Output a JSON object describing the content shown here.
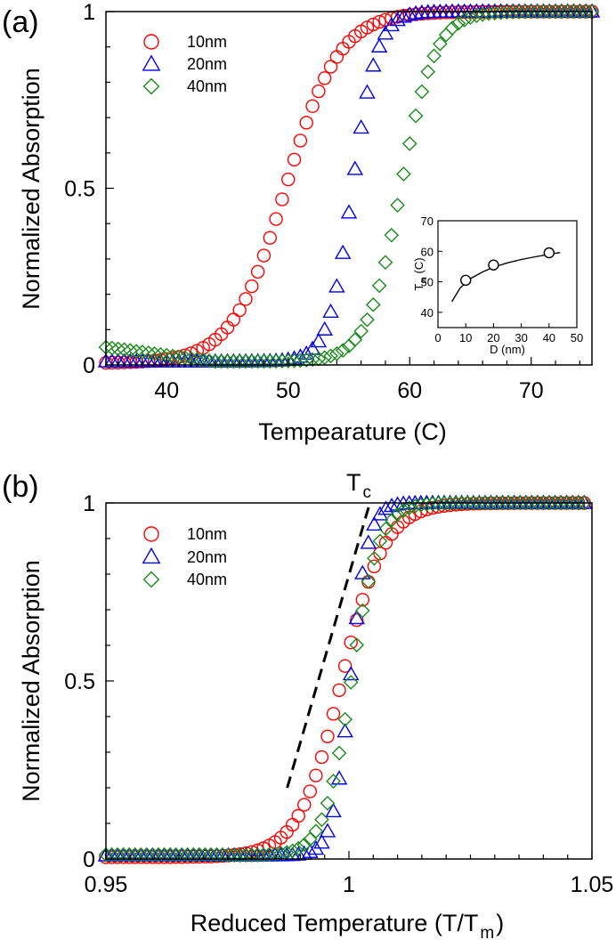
{
  "figure_labels": {
    "a": "(a)",
    "b": "(b)"
  },
  "colors": {
    "s10": "#ff0000",
    "s20": "#0000ee",
    "s40": "#1a8c1a",
    "axis": "#000000"
  },
  "chart_data": [
    {
      "id": "a",
      "type": "scatter",
      "title": "",
      "xlabel": "Tempearature (C)",
      "ylabel": "Normalized Absorption",
      "xlim": [
        35,
        75
      ],
      "ylim": [
        0,
        1
      ],
      "xticks": [
        40,
        50,
        60,
        70
      ],
      "yticks": [
        0,
        0.5,
        1
      ],
      "ytick_labels": [
        "0",
        "0.5",
        "1"
      ],
      "legend": [
        "10nm",
        "20nm",
        "40nm"
      ],
      "legend_position": "top-left",
      "series": [
        {
          "name": "10nm",
          "marker": "circle",
          "color": "#ff0000",
          "midpoint": 49.8,
          "width": 2.2,
          "baseline": 0.005
        },
        {
          "name": "20nm",
          "marker": "triangle",
          "color": "#0000ee",
          "midpoint": 55.3,
          "width": 1.0,
          "baseline": 0.01
        },
        {
          "name": "40nm",
          "marker": "diamond",
          "color": "#1a8c1a",
          "midpoint": 59.3,
          "width": 1.4,
          "baseline": 0.01
        }
      ],
      "inset": {
        "xlabel": "D (nm)",
        "ylabel_main": "T",
        "ylabel_sub": "m",
        "ylabel_unit": " (C)",
        "xlim": [
          0,
          50
        ],
        "ylim": [
          35,
          70
        ],
        "xticks": [
          0,
          10,
          20,
          30,
          40,
          50
        ],
        "yticks": [
          40,
          50,
          60,
          70
        ],
        "points": [
          [
            10,
            50.5
          ],
          [
            20,
            55.5
          ],
          [
            40,
            59.5
          ]
        ],
        "fit_curve": [
          [
            5,
            43.5
          ],
          [
            8,
            48.0
          ],
          [
            12,
            51.2
          ],
          [
            16,
            53.2
          ],
          [
            20,
            54.8
          ],
          [
            25,
            56.2
          ],
          [
            30,
            57.3
          ],
          [
            35,
            58.2
          ],
          [
            40,
            59.0
          ],
          [
            44,
            59.6
          ]
        ]
      }
    },
    {
      "id": "b",
      "type": "scatter",
      "title": "",
      "xlabel_main": "Reduced Temperature (T/T",
      "xlabel_sub": "m",
      "xlabel_end": ")",
      "ylabel": "Normalized Absorption",
      "xlim": [
        0.95,
        1.05
      ],
      "ylim": [
        0,
        1
      ],
      "xticks": [
        0.95,
        1,
        1.05
      ],
      "xtick_labels": [
        "0.95",
        "1",
        "1.05"
      ],
      "yticks": [
        0,
        0.5,
        1
      ],
      "ytick_labels": [
        "0",
        "0.5",
        "1"
      ],
      "legend": [
        "10nm",
        "20nm",
        "40nm"
      ],
      "legend_position": "top-left",
      "annotation_main": "T",
      "annotation_sub": "c",
      "tangent_line": [
        [
          0.9873,
          0.2
        ],
        [
          1.0043,
          1.0
        ]
      ],
      "series": [
        {
          "name": "10nm",
          "marker": "circle",
          "color": "#ff0000",
          "midpoint": 0.9985,
          "width": 0.0044,
          "baseline": 0.005
        },
        {
          "name": "20nm",
          "marker": "triangle",
          "color": "#0000ee",
          "midpoint": 1.0003,
          "width": 0.0018,
          "baseline": 0.01
        },
        {
          "name": "40nm",
          "marker": "diamond",
          "color": "#1a8c1a",
          "midpoint": 1.0005,
          "width": 0.0028,
          "baseline": 0.01
        }
      ]
    }
  ]
}
